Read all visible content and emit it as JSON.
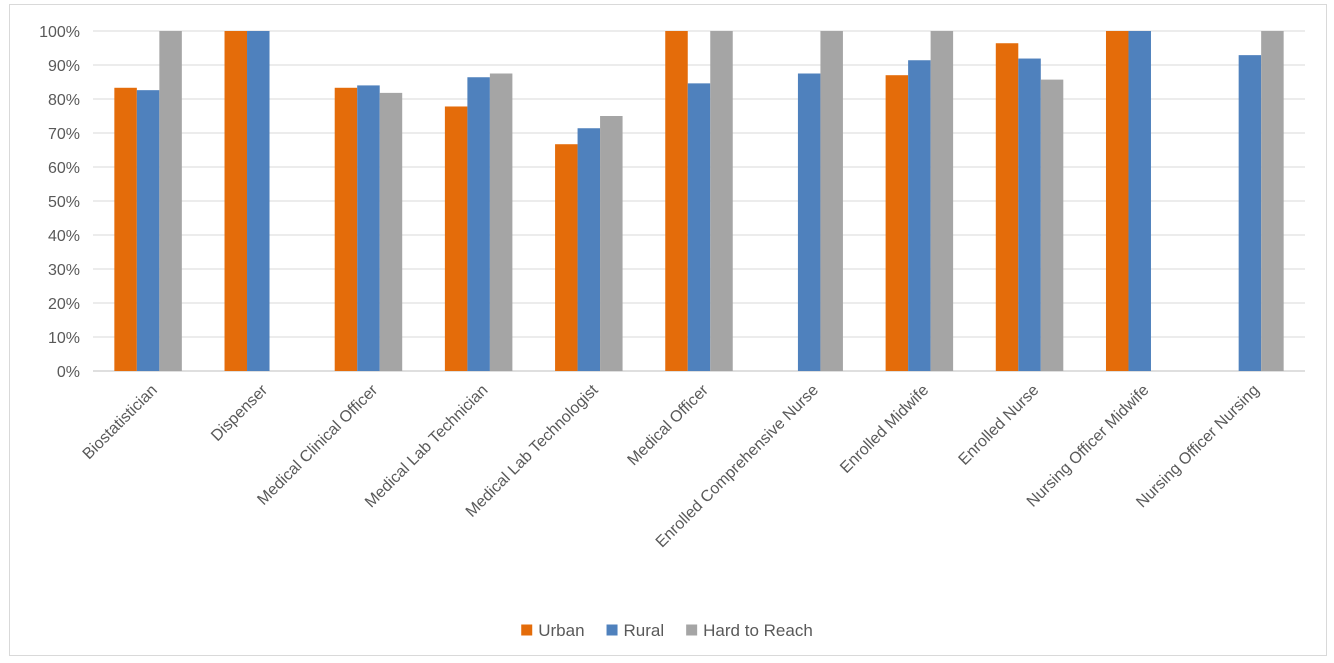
{
  "chart_data": {
    "type": "bar",
    "title": "",
    "xlabel": "",
    "ylabel": "",
    "ylim": [
      0,
      100
    ],
    "ytick_step": 10,
    "ytick_suffix": "%",
    "grid": true,
    "legend_position": "bottom",
    "categories": [
      "Biostatistician",
      "Dispenser",
      "Medical Clinical Officer",
      "Medical Lab Technician",
      "Medical Lab Technologist",
      "Medical Officer",
      "Enrolled Comprehensive Nurse",
      "Enrolled Midwife",
      "Enrolled Nurse",
      "Nursing Officer Midwife",
      "Nursing Officer Nursing"
    ],
    "series": [
      {
        "name": "Urban",
        "color": "#e46c0a",
        "values": [
          83.3,
          100,
          83.3,
          77.8,
          66.7,
          100,
          null,
          87.0,
          96.4,
          100,
          null
        ]
      },
      {
        "name": "Rural",
        "color": "#4f81bd",
        "values": [
          82.6,
          100,
          84.0,
          86.4,
          71.4,
          84.6,
          87.5,
          91.4,
          91.9,
          100,
          92.9
        ]
      },
      {
        "name": "Hard to Reach",
        "color": "#a5a5a5",
        "values": [
          100,
          null,
          81.8,
          87.5,
          75.0,
          100,
          100,
          100,
          85.7,
          null,
          100
        ]
      }
    ]
  }
}
